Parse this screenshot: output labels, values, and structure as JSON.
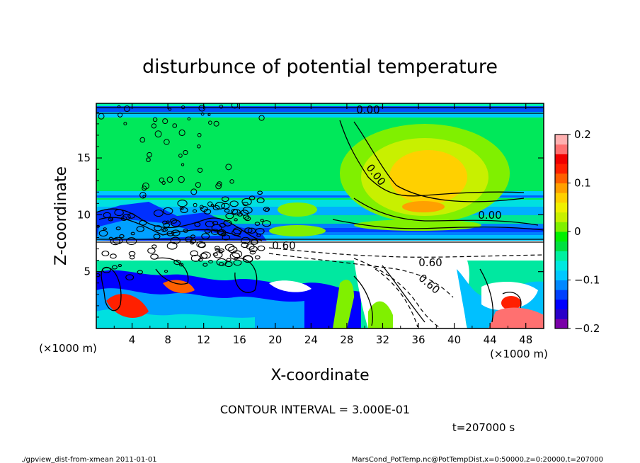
{
  "chart_data": {
    "type": "heatmap",
    "title": "disturbunce of potential temperature",
    "xlabel": "X-coordinate",
    "ylabel": "Z-coordinate",
    "x_unit_left": "(×1000 m)",
    "x_unit_right": "(×1000 m)",
    "xlim": [
      0,
      50
    ],
    "ylim": [
      0,
      19.8
    ],
    "x_ticks": [
      4,
      8,
      12,
      16,
      20,
      24,
      28,
      32,
      36,
      40,
      44,
      48
    ],
    "y_ticks": [
      5,
      10,
      15
    ],
    "colorbar": {
      "ticks": [
        0.2,
        0.1,
        0,
        -0.1,
        -0.2
      ],
      "tick_labels": [
        "0.2",
        "0.1",
        "0",
        "−0.1",
        "−0.2"
      ],
      "range": [
        -0.2,
        0.2
      ],
      "colors": [
        "#7a00a8",
        "#2a00c8",
        "#0000ff",
        "#0040ff",
        "#0088ff",
        "#00c8ff",
        "#00e8e0",
        "#00f0a0",
        "#00e040",
        "#00f000",
        "#80f000",
        "#c8f000",
        "#f0f000",
        "#ffd000",
        "#ffa000",
        "#ff6000",
        "#ff2000",
        "#f00000",
        "#ff7070",
        "#ffb0b0"
      ]
    },
    "contour_labels": [
      "0.00",
      "0.00",
      "0.00",
      "0.60",
      "0.60",
      "0.60"
    ],
    "contour_interval_text": "CONTOUR INTERVAL = 3.000E-01",
    "time_text": "t=207000 s"
  },
  "footer": {
    "left": "./gpview_dist-from-xmean  2011-01-01",
    "right": "MarsCond_PotTemp.nc@PotTempDist,x=0:50000,z=0:20000,t=207000"
  }
}
